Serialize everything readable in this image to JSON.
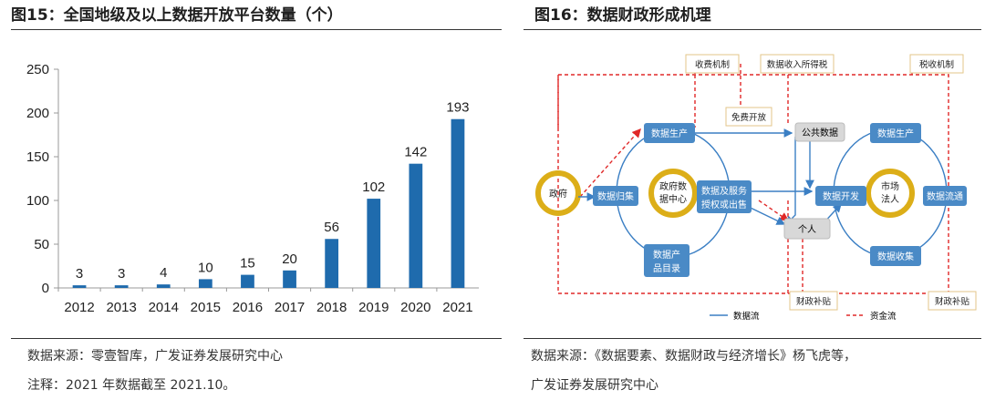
{
  "left_panel": {
    "title": "图15：全国地级及以上数据开放平台数量（个）",
    "source": "数据来源：零壹智库，广发证券发展研究中心",
    "note": "注释：2021 年数据截至 2021.10。"
  },
  "chart_data": {
    "type": "bar",
    "title": "全国地级及以上数据开放平台数量（个）",
    "categories": [
      "2012",
      "2013",
      "2014",
      "2015",
      "2016",
      "2017",
      "2018",
      "2019",
      "2020",
      "2021"
    ],
    "values": [
      3,
      3,
      4,
      10,
      15,
      20,
      56,
      102,
      142,
      193
    ],
    "ylim": [
      0,
      250
    ],
    "yticks": [
      0,
      50,
      100,
      150,
      200,
      250
    ],
    "xlabel": "",
    "ylabel": "",
    "bar_color": "#1f6bad",
    "grid": false
  },
  "right_panel": {
    "title": "图16：数据财政形成机理",
    "source": "数据来源：《数据要素、数据财政与经济增长》杨飞虎等，",
    "source_line2": "广发证券发展研究中心"
  },
  "diagram": {
    "boxes": {
      "fee": "收费机制",
      "tax_income": "数据收入所得税",
      "tax_levy": "税收机制",
      "free_open": "免费开放",
      "public_data": "公共数据",
      "subsidy_left": "财政补贴",
      "subsidy_right": "财政补贴",
      "gov": "政府",
      "gov_center": [
        "政府数",
        "据中心"
      ],
      "market": [
        "市场",
        "法人"
      ],
      "person": "个人",
      "produce_left": "数据生产",
      "produce_right": "数据生产",
      "collect": "数据归集",
      "service": [
        "数据及服务",
        "授权或出售"
      ],
      "catalog": [
        "数据产",
        "品目录"
      ],
      "develop": "数据开发",
      "circulate": "数据流通",
      "gather": "数据收集"
    },
    "legend": {
      "data_flow": "数据流",
      "capital_flow": "资金流"
    },
    "colors": {
      "node": "#4a8ac6",
      "flow": "#3b7fc4",
      "capital": "#e02828",
      "ring": "#dcae18",
      "gray": "#d8d8d8"
    }
  }
}
